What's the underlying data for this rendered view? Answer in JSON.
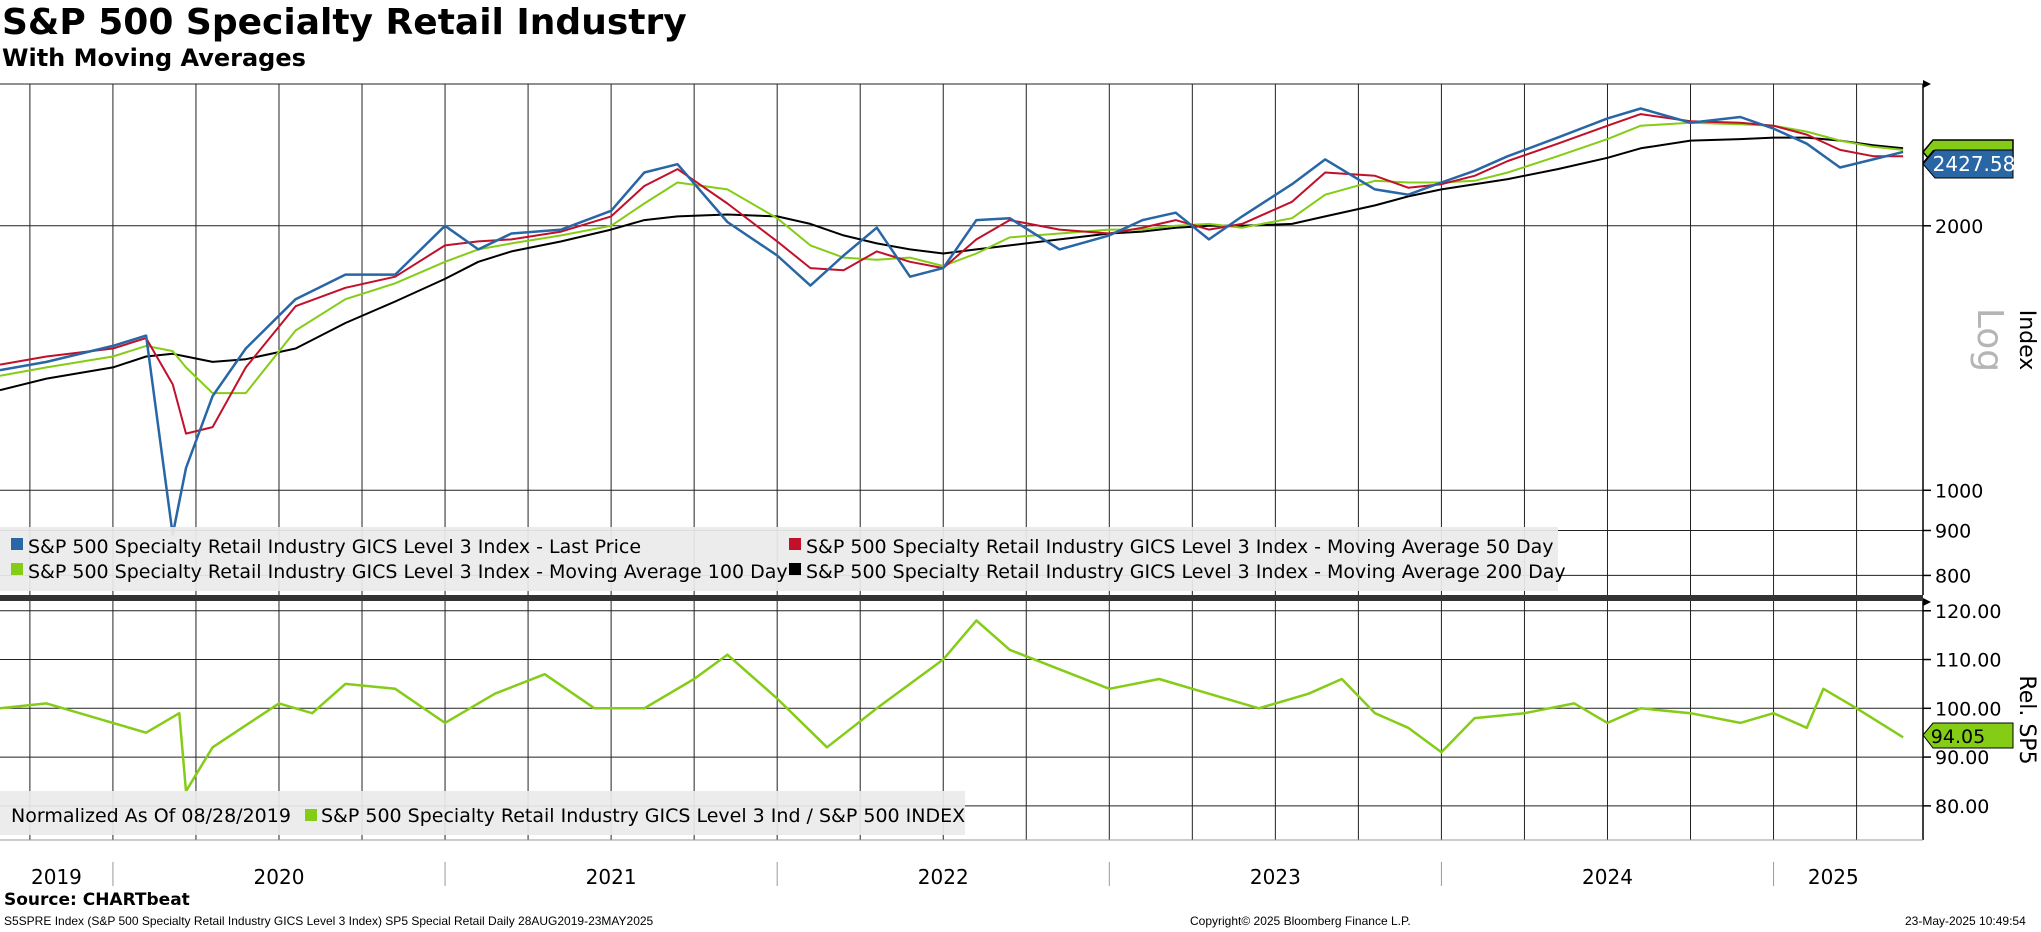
{
  "header": {
    "title": "S&P 500 Specialty Retail Industry",
    "subtitle": "With Moving Averages"
  },
  "footer": {
    "source": "Source: CHARTbeat",
    "ticker_info": "S5SPRE Index (S&P 500 Specialty Retail Industry GICS Level 3 Index) SP5 Special Retail  Daily 28AUG2019-23MAY2025",
    "copyright": "Copyright© 2025 Bloomberg Finance L.P.",
    "timestamp": "23-May-2025 10:49:54"
  },
  "colors": {
    "last_price": "#2866a6",
    "ma50": "#c0102a",
    "ma100": "#84cc16",
    "ma200": "#000000",
    "relative": "#84cc16"
  },
  "chart_data": [
    {
      "type": "line",
      "panel": "upper",
      "scale": "log",
      "axis_title": "Index",
      "scale_label": "Log",
      "ylim": [
        760,
        2900
      ],
      "yticks": [
        800,
        900,
        1000,
        2000
      ],
      "yticklabels": [
        "800",
        "900",
        "1000",
        "2000"
      ],
      "last_value_label": "2427.58",
      "x": [
        2019.66,
        2019.8,
        2020.0,
        2020.1,
        2020.18,
        2020.22,
        2020.3,
        2020.4,
        2020.55,
        2020.7,
        2020.85,
        2021.0,
        2021.1,
        2021.2,
        2021.35,
        2021.5,
        2021.6,
        2021.7,
        2021.85,
        2022.0,
        2022.1,
        2022.2,
        2022.3,
        2022.4,
        2022.5,
        2022.6,
        2022.7,
        2022.85,
        2023.0,
        2023.1,
        2023.2,
        2023.3,
        2023.4,
        2023.55,
        2023.65,
        2023.8,
        2023.9,
        2024.0,
        2024.1,
        2024.2,
        2024.35,
        2024.5,
        2024.6,
        2024.75,
        2024.9,
        2025.0,
        2025.1,
        2025.2,
        2025.3,
        2025.39
      ],
      "series": [
        {
          "name": "S&P 500 Specialty Retail Industry GICS Level 3 Index - Last Price",
          "values": [
            1370,
            1400,
            1460,
            1500,
            890,
            1060,
            1280,
            1450,
            1650,
            1760,
            1760,
            2000,
            1880,
            1960,
            1980,
            2080,
            2300,
            2350,
            2020,
            1850,
            1710,
            1850,
            1990,
            1750,
            1790,
            2030,
            2040,
            1880,
            1950,
            2030,
            2070,
            1930,
            2050,
            2230,
            2380,
            2200,
            2170,
            2240,
            2310,
            2400,
            2520,
            2650,
            2720,
            2620,
            2660,
            2580,
            2480,
            2330,
            2380,
            2427.58
          ]
        },
        {
          "name": "S&P 500 Specialty Retail Industry GICS Level 3 Index - Moving Average 50 Day",
          "values": [
            1390,
            1420,
            1450,
            1490,
            1320,
            1160,
            1180,
            1380,
            1620,
            1700,
            1750,
            1900,
            1920,
            1930,
            1970,
            2050,
            2220,
            2320,
            2120,
            1920,
            1790,
            1780,
            1870,
            1820,
            1790,
            1930,
            2030,
            1980,
            1960,
            1990,
            2030,
            1980,
            2010,
            2130,
            2300,
            2280,
            2210,
            2230,
            2280,
            2370,
            2480,
            2600,
            2680,
            2630,
            2620,
            2600,
            2540,
            2440,
            2400,
            2400
          ]
        },
        {
          "name": "S&P 500 Specialty Retail Industry GICS Level 3 Index - Moving Average 100 Day",
          "values": [
            1350,
            1380,
            1420,
            1460,
            1440,
            1380,
            1290,
            1290,
            1520,
            1650,
            1720,
            1820,
            1880,
            1910,
            1950,
            2000,
            2120,
            2240,
            2200,
            2040,
            1900,
            1840,
            1830,
            1840,
            1800,
            1860,
            1940,
            1960,
            1980,
            1980,
            2000,
            2010,
            1990,
            2040,
            2170,
            2250,
            2240,
            2240,
            2250,
            2300,
            2400,
            2510,
            2600,
            2620,
            2610,
            2600,
            2560,
            2500,
            2460,
            2440
          ]
        },
        {
          "name": "S&P 500 Specialty Retail Industry GICS Level 3 Index - Moving Average 200 Day",
          "values": [
            1300,
            1340,
            1380,
            1420,
            1430,
            1420,
            1400,
            1410,
            1450,
            1550,
            1640,
            1740,
            1820,
            1870,
            1920,
            1980,
            2030,
            2050,
            2060,
            2050,
            2010,
            1950,
            1910,
            1880,
            1860,
            1880,
            1900,
            1930,
            1960,
            1970,
            1990,
            2000,
            2000,
            2010,
            2050,
            2110,
            2160,
            2200,
            2230,
            2260,
            2320,
            2390,
            2450,
            2500,
            2510,
            2520,
            2520,
            2500,
            2470,
            2450
          ]
        }
      ],
      "legend": [
        "S&P 500 Specialty Retail Industry GICS Level 3 Index - Last Price",
        "S&P 500 Specialty Retail Industry GICS Level 3 Index - Moving Average 50 Day",
        "S&P 500 Specialty Retail Industry GICS Level 3 Index - Moving Average 100 Day",
        "S&P 500 Specialty Retail Industry GICS Level 3 Index - Moving Average 200 Day"
      ]
    },
    {
      "type": "line",
      "panel": "lower",
      "axis_title": "Rel. SP5",
      "ylim": [
        73,
        122
      ],
      "yticks": [
        80,
        90,
        100,
        110,
        120
      ],
      "yticklabels": [
        "80.00",
        "90.00",
        "100.00",
        "110.00",
        "120.00"
      ],
      "last_value_label": "94.05",
      "normalized_label": "Normalized As Of 08/28/2019",
      "legend": [
        "S&P 500 Specialty Retail Industry GICS Level 3 Ind / S&P 500 INDEX"
      ],
      "x": [
        2019.66,
        2019.8,
        2020.0,
        2020.1,
        2020.2,
        2020.22,
        2020.3,
        2020.5,
        2020.6,
        2020.7,
        2020.85,
        2021.0,
        2021.15,
        2021.3,
        2021.45,
        2021.6,
        2021.75,
        2021.85,
        2022.0,
        2022.15,
        2022.3,
        2022.4,
        2022.5,
        2022.6,
        2022.7,
        2022.85,
        2023.0,
        2023.15,
        2023.3,
        2023.45,
        2023.6,
        2023.7,
        2023.8,
        2023.9,
        2024.0,
        2024.1,
        2024.25,
        2024.4,
        2024.5,
        2024.6,
        2024.75,
        2024.9,
        2025.0,
        2025.1,
        2025.15,
        2025.25,
        2025.39
      ],
      "series": [
        {
          "name": "S&P 500 Specialty Retail Industry GICS Level 3 Ind / S&P 500 INDEX",
          "values": [
            100,
            101,
            97,
            95,
            99,
            83,
            92,
            101,
            99,
            105,
            104,
            97,
            103,
            107,
            100,
            100,
            106,
            111,
            102,
            92,
            100,
            105,
            110,
            118,
            112,
            108,
            104,
            106,
            103,
            100,
            103,
            106,
            99,
            96,
            91,
            98,
            99,
            101,
            97,
            100,
            99,
            97,
            99,
            96,
            104,
            100,
            94.05
          ]
        }
      ]
    }
  ],
  "xaxis": {
    "year_labels": [
      "2019",
      "2020",
      "2021",
      "2022",
      "2023",
      "2024",
      "2025"
    ],
    "year_label_positions": [
      2019.83,
      2020.5,
      2021.5,
      2022.5,
      2023.5,
      2024.5,
      2025.18
    ],
    "year_boundaries": [
      2020.0,
      2021.0,
      2022.0,
      2023.0,
      2024.0,
      2025.0
    ],
    "gridlines": [
      2019.75,
      2020.0,
      2020.25,
      2020.5,
      2020.75,
      2021.0,
      2021.25,
      2021.5,
      2021.75,
      2022.0,
      2022.25,
      2022.5,
      2022.75,
      2023.0,
      2023.25,
      2023.5,
      2023.75,
      2024.0,
      2024.25,
      2024.5,
      2024.75,
      2025.0,
      2025.25
    ],
    "range": [
      2019.66,
      2025.45
    ]
  }
}
